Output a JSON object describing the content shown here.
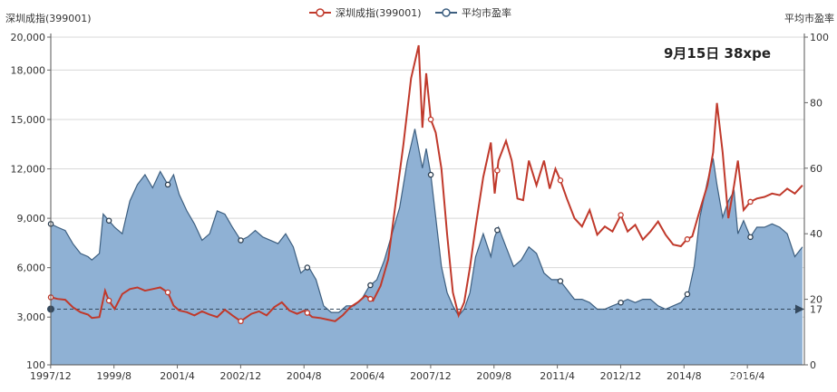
{
  "chart_data": {
    "type": "line",
    "left_axis_label": "深圳成指(399001)",
    "right_axis_label": "平均市盈率",
    "annotation": "9月15日 38xpe",
    "watermark": "头条号 / 股市操盘手",
    "legend": [
      {
        "name": "深圳成指(399001)",
        "color": "#c0392b"
      },
      {
        "name": "平均市盈率",
        "color": "#3d5f80"
      }
    ],
    "y_left_ticks": [
      "100",
      "3,000",
      "6,000",
      "9,000",
      "12,000",
      "15,000",
      "18,000",
      "20,000"
    ],
    "y_right_ticks": [
      "0",
      "20",
      "40",
      "60",
      "80",
      "100"
    ],
    "x_ticks": [
      "1997/12",
      "1999/8",
      "2001/4",
      "2002/12",
      "2004/8",
      "2006/4",
      "2007/12",
      "2009/8",
      "2011/4",
      "2012/12",
      "2014/8",
      "2016/4"
    ],
    "y_left_range": [
      100,
      20000
    ],
    "y_right_range": [
      0,
      100
    ],
    "reference_line": {
      "value": 17,
      "label": "17",
      "axis": "right"
    },
    "series": [
      {
        "name": "深圳成指(399001)",
        "axis": "left",
        "x": [
          1997.92,
          1998.1,
          1998.3,
          1998.5,
          1998.7,
          1998.9,
          1999.0,
          1999.2,
          1999.35,
          1999.45,
          1999.6,
          1999.8,
          2000.0,
          2000.2,
          2000.4,
          2000.6,
          2000.8,
          2001.0,
          2001.15,
          2001.3,
          2001.5,
          2001.7,
          2001.9,
          2002.1,
          2002.3,
          2002.5,
          2002.7,
          2002.92,
          2003.2,
          2003.4,
          2003.6,
          2003.8,
          2004.0,
          2004.2,
          2004.4,
          2004.6,
          2004.8,
          2005.0,
          2005.2,
          2005.4,
          2005.6,
          2005.8,
          2006.0,
          2006.2,
          2006.4,
          2006.6,
          2006.8,
          2007.0,
          2007.2,
          2007.4,
          2007.6,
          2007.7,
          2007.8,
          2007.92,
          2008.05,
          2008.2,
          2008.35,
          2008.5,
          2008.65,
          2008.8,
          2008.95,
          2009.1,
          2009.3,
          2009.5,
          2009.6,
          2009.7,
          2009.9,
          2010.05,
          2010.2,
          2010.35,
          2010.5,
          2010.7,
          2010.9,
          2011.05,
          2011.2,
          2011.33,
          2011.5,
          2011.7,
          2011.9,
          2012.1,
          2012.3,
          2012.5,
          2012.7,
          2012.92,
          2013.1,
          2013.3,
          2013.5,
          2013.7,
          2013.9,
          2014.1,
          2014.3,
          2014.5,
          2014.65,
          2014.8,
          2015.0,
          2015.2,
          2015.35,
          2015.45,
          2015.6,
          2015.75,
          2015.9,
          2016.0,
          2016.15,
          2016.33,
          2016.5,
          2016.7,
          2016.9,
          2017.1,
          2017.3,
          2017.5,
          2017.7
        ],
        "values": [
          4200,
          4100,
          4050,
          3600,
          3300,
          3150,
          2950,
          3000,
          4600,
          4000,
          3500,
          4400,
          4700,
          4800,
          4600,
          4700,
          4800,
          4500,
          3700,
          3400,
          3300,
          3100,
          3350,
          3150,
          3000,
          3450,
          3100,
          2750,
          3200,
          3350,
          3100,
          3600,
          3900,
          3400,
          3200,
          3400,
          3000,
          2950,
          2850,
          2750,
          3100,
          3600,
          3900,
          4300,
          4000,
          4900,
          6500,
          10000,
          13500,
          17500,
          19500,
          14500,
          17800,
          15000,
          14200,
          12000,
          8000,
          4500,
          3100,
          3900,
          6000,
          8500,
          11500,
          13600,
          10500,
          12500,
          13700,
          12500,
          10200,
          10100,
          12500,
          11000,
          12500,
          10800,
          12000,
          11300,
          10200,
          9000,
          8500,
          9500,
          8000,
          8500,
          8200,
          9200,
          8200,
          8600,
          7700,
          8200,
          8800,
          8000,
          7400,
          7300,
          7700,
          7900,
          9500,
          11000,
          13000,
          16000,
          13000,
          9000,
          11000,
          12500,
          9500,
          10000,
          10200,
          10300,
          10500,
          10400,
          10800,
          10500,
          11000
        ]
      },
      {
        "name": "平均市盈率",
        "axis": "right",
        "x": [
          1997.92,
          1998.1,
          1998.3,
          1998.5,
          1998.7,
          1998.9,
          1999.0,
          1999.2,
          1999.3,
          1999.45,
          1999.6,
          1999.8,
          2000.0,
          2000.2,
          2000.4,
          2000.6,
          2000.8,
          2001.0,
          2001.15,
          2001.3,
          2001.5,
          2001.7,
          2001.9,
          2002.1,
          2002.3,
          2002.5,
          2002.7,
          2002.92,
          2003.1,
          2003.3,
          2003.5,
          2003.7,
          2003.9,
          2004.1,
          2004.3,
          2004.5,
          2004.7,
          2004.9,
          2005.1,
          2005.3,
          2005.5,
          2005.7,
          2005.9,
          2006.1,
          2006.3,
          2006.5,
          2006.7,
          2006.9,
          2007.1,
          2007.3,
          2007.5,
          2007.7,
          2007.8,
          2007.92,
          2008.05,
          2008.2,
          2008.35,
          2008.5,
          2008.65,
          2008.8,
          2008.95,
          2009.1,
          2009.3,
          2009.5,
          2009.6,
          2009.7,
          2009.9,
          2010.1,
          2010.3,
          2010.5,
          2010.7,
          2010.9,
          2011.1,
          2011.3,
          2011.5,
          2011.7,
          2011.9,
          2012.1,
          2012.3,
          2012.5,
          2012.7,
          2012.92,
          2013.1,
          2013.3,
          2013.5,
          2013.7,
          2013.9,
          2014.1,
          2014.3,
          2014.5,
          2014.7,
          2014.85,
          2015.0,
          2015.2,
          2015.35,
          2015.45,
          2015.6,
          2015.75,
          2015.9,
          2016.0,
          2016.15,
          2016.33,
          2016.5,
          2016.7,
          2016.9,
          2017.1,
          2017.3,
          2017.5,
          2017.7
        ],
        "values": [
          43,
          42,
          41,
          37,
          34,
          33,
          32,
          34,
          46,
          44,
          42,
          40,
          50,
          55,
          58,
          54,
          59,
          55,
          58,
          52,
          47,
          43,
          38,
          40,
          47,
          46,
          42,
          38,
          39,
          41,
          39,
          38,
          37,
          40,
          36,
          28,
          30,
          26,
          18,
          16,
          16,
          18,
          18,
          20,
          24,
          26,
          32,
          40,
          48,
          62,
          72,
          60,
          66,
          58,
          45,
          30,
          22,
          18,
          15,
          17,
          22,
          33,
          40,
          33,
          39,
          42,
          36,
          30,
          32,
          36,
          34,
          28,
          26,
          26,
          23,
          20,
          20,
          19,
          17,
          17,
          18,
          19,
          20,
          19,
          20,
          20,
          18,
          17,
          18,
          19,
          22,
          30,
          45,
          56,
          63,
          55,
          45,
          50,
          53,
          40,
          44,
          39,
          42,
          42,
          43,
          42,
          40,
          33,
          36
        ]
      }
    ],
    "markers": {
      "index": {
        "x": [
          1997.92,
          1999.45,
          2001.0,
          2002.92,
          2004.67,
          2006.33,
          2007.92,
          2009.67,
          2011.33,
          2012.92,
          2014.67,
          2016.33
        ]
      },
      "pe": {
        "x": [
          1997.92,
          1999.45,
          2001.0,
          2002.92,
          2004.67,
          2006.33,
          2007.92,
          2009.67,
          2011.33,
          2012.92,
          2014.67,
          2016.33
        ]
      }
    },
    "x_range": [
      1997.92,
      2017.75
    ]
  }
}
